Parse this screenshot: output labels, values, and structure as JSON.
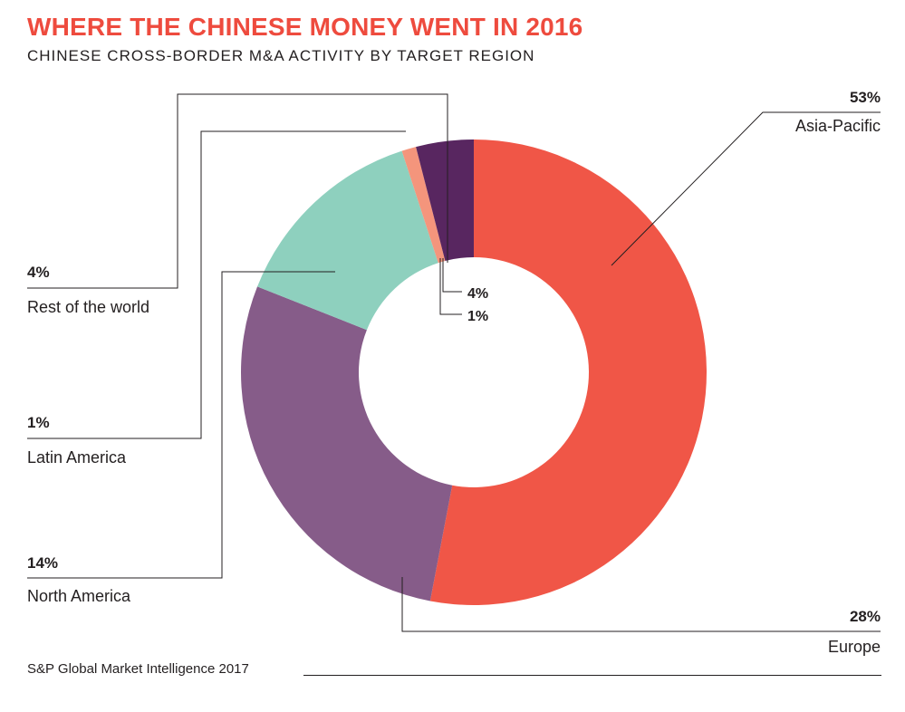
{
  "title": "WHERE THE CHINESE MONEY WENT IN 2016",
  "subtitle": "CHINESE CROSS-BORDER M&A ACTIVITY BY TARGET REGION",
  "source": "S&P Global Market Intelligence 2017",
  "chart_data": {
    "type": "pie",
    "donut": true,
    "unit": "%",
    "slices": [
      {
        "name": "Asia-Pacific",
        "value": 53,
        "label": "53%",
        "color": "#f05647"
      },
      {
        "name": "Europe",
        "value": 28,
        "label": "28%",
        "color": "#865c89"
      },
      {
        "name": "North America",
        "value": 14,
        "label": "14%",
        "color": "#8ed0be"
      },
      {
        "name": "Latin America",
        "value": 1,
        "label": "1%",
        "color": "#f4957c"
      },
      {
        "name": "Rest of the world",
        "value": 4,
        "label": "4%",
        "color": "#582660"
      }
    ]
  }
}
